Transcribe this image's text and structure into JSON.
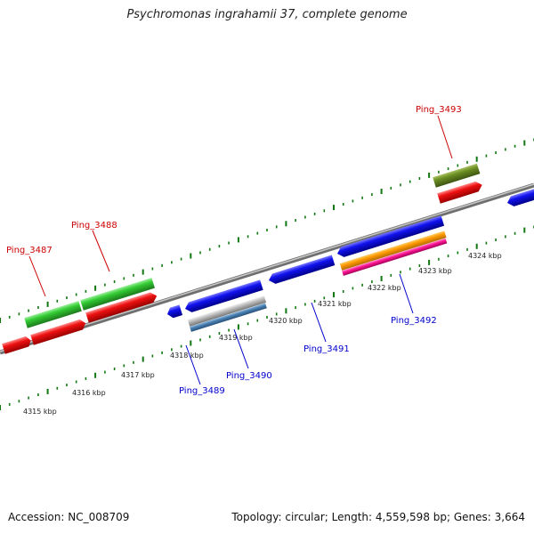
{
  "header": {
    "title": "Psychromonas ingrahamii 37, complete genome"
  },
  "footer": {
    "accession": "Accession: NC_008709",
    "summary": "Topology: circular; Length: 4,559,598 bp; Genes: 3,664"
  },
  "colors": {
    "forward_label": "#cc0000",
    "reverse_label": "#0000cc",
    "tick": "#117711",
    "backbone": "#888888",
    "red_gene": "#ee1111",
    "green_gene": "#33cc33",
    "blue_gene": "#1111ee",
    "olive_gene": "#6b8e23",
    "orange_gene": "#ff9900",
    "magenta_gene": "#ff1493",
    "gray_gene": "#bbbbbb",
    "steel_gene": "#4a7fb0"
  },
  "scale": {
    "ticks": [
      "4315 kbp",
      "4316 kbp",
      "4317 kbp",
      "4318 kbp",
      "4319 kbp",
      "4320 kbp",
      "4321 kbp",
      "4322 kbp",
      "4323 kbp",
      "4324 kbp"
    ]
  },
  "gene_labels": [
    {
      "id": "Ping_3487",
      "strand": "forward"
    },
    {
      "id": "Ping_3488",
      "strand": "forward"
    },
    {
      "id": "Ping_3493",
      "strand": "forward"
    },
    {
      "id": "Ping_3489",
      "strand": "reverse"
    },
    {
      "id": "Ping_3490",
      "strand": "reverse"
    },
    {
      "id": "Ping_3491",
      "strand": "reverse"
    },
    {
      "id": "Ping_3492",
      "strand": "reverse"
    }
  ]
}
